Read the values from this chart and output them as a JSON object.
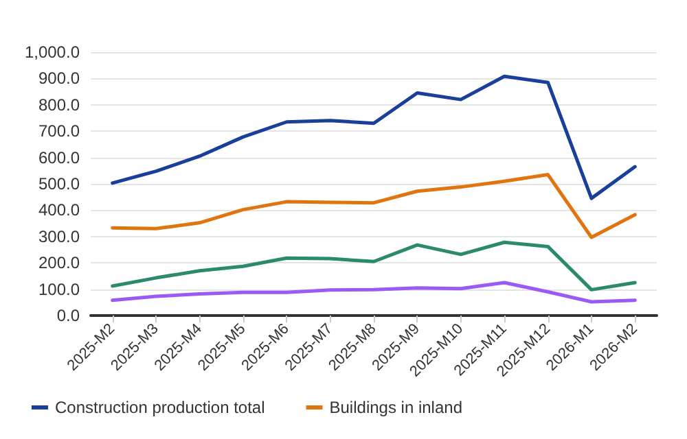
{
  "chart_data": {
    "type": "line",
    "categories": [
      "2025-M2",
      "2025-M3",
      "2025-M4",
      "2025-M5",
      "2025-M6",
      "2025-M7",
      "2025-M8",
      "2025-M9",
      "2025-M10",
      "2025-M11",
      "2025-M12",
      "2026-M1",
      "2026-M2"
    ],
    "series": [
      {
        "name": "Construction production total",
        "color": "#1a3f9b",
        "values": [
          503,
          548,
          605,
          678,
          735,
          740,
          730,
          845,
          820,
          908,
          885,
          445,
          565
        ]
      },
      {
        "name": "Buildings in inland",
        "color": "#e0750f",
        "values": [
          333,
          330,
          352,
          402,
          432,
          430,
          428,
          472,
          488,
          510,
          535,
          297,
          383
        ]
      },
      {
        "color": "#2a8a6b",
        "values": [
          112,
          143,
          170,
          187,
          218,
          216,
          205,
          268,
          232,
          278,
          262,
          98,
          125
        ]
      },
      {
        "color": "#9b59f5",
        "values": [
          58,
          73,
          82,
          88,
          88,
          97,
          98,
          105,
          102,
          125,
          90,
          52,
          58
        ]
      }
    ],
    "ylim": [
      0,
      1000
    ],
    "yticks": [
      {
        "value": 0,
        "label": "0.0"
      },
      {
        "value": 100,
        "label": "100.0"
      },
      {
        "value": 200,
        "label": "200.0"
      },
      {
        "value": 300,
        "label": "300.0"
      },
      {
        "value": 400,
        "label": "400.0"
      },
      {
        "value": 500,
        "label": "500.0"
      },
      {
        "value": 600,
        "label": "600.0"
      },
      {
        "value": 700,
        "label": "700.0"
      },
      {
        "value": 800,
        "label": "800.0"
      },
      {
        "value": 900,
        "label": "900.0"
      },
      {
        "value": 1000,
        "label": "1,000.0"
      }
    ],
    "grid": "y",
    "legend": "bottom",
    "marker": "none",
    "line_style": "solid"
  }
}
